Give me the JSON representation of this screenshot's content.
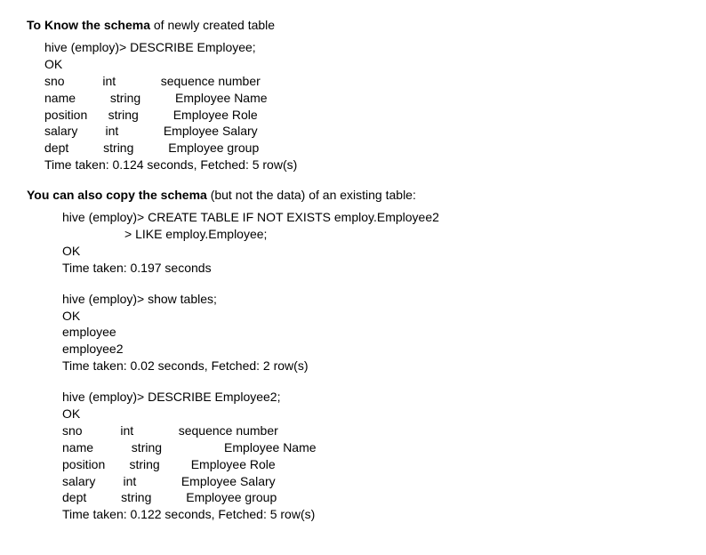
{
  "section1": {
    "heading_bold": "To Know the schema",
    "heading_rest": " of newly created table",
    "cmd": "hive (employ)>     DESCRIBE Employee;",
    "ok": "OK",
    "rows": [
      {
        "c1": "sno",
        "c2": "int",
        "c3": "sequence number"
      },
      {
        "c1": "name",
        "c2": "string",
        "c3": "Employee Name"
      },
      {
        "c1": "position",
        "c2": "string",
        "c3": "Employee Role"
      },
      {
        "c1": "salary",
        "c2": "int",
        "c3": "Employee Salary"
      },
      {
        "c1": "dept",
        "c2": "string",
        "c3": "Employee group"
      }
    ],
    "time": "Time taken: 0.124 seconds, Fetched: 5 row(s)"
  },
  "section2": {
    "heading_bold": "You can also copy the schema",
    "heading_rest": " (but not the data) of an existing table:",
    "cmd1": "hive (employ)> CREATE TABLE IF NOT EXISTS employ.Employee2",
    "cmd2": "> LIKE employ.Employee;",
    "ok": "OK",
    "time": "Time taken: 0.197 seconds"
  },
  "section3": {
    "cmd": "hive (employ)> show tables;",
    "ok": "OK",
    "r1": "employee",
    "r2": "employee2",
    "time": "Time taken: 0.02 seconds, Fetched: 2 row(s)"
  },
  "section4": {
    "cmd": "hive (employ)> DESCRIBE Employee2;",
    "ok": "OK",
    "rows": [
      {
        "c1": "sno",
        "c2": "int",
        "c3": "sequence number"
      },
      {
        "c1": "name",
        "c2": " string",
        "c3": "         Employee Name"
      },
      {
        "c1": "position",
        "c2": " string",
        "c3": "Employee Role"
      },
      {
        "c1": "salary",
        "c2": "int",
        "c3": "Employee Salary"
      },
      {
        "c1": "dept",
        "c2": "string",
        "c3": "Employee group"
      }
    ],
    "time": "Time taken: 0.122 seconds, Fetched: 5 row(s)"
  },
  "layout": {
    "col1_width": 14,
    "col2_width": 16
  }
}
